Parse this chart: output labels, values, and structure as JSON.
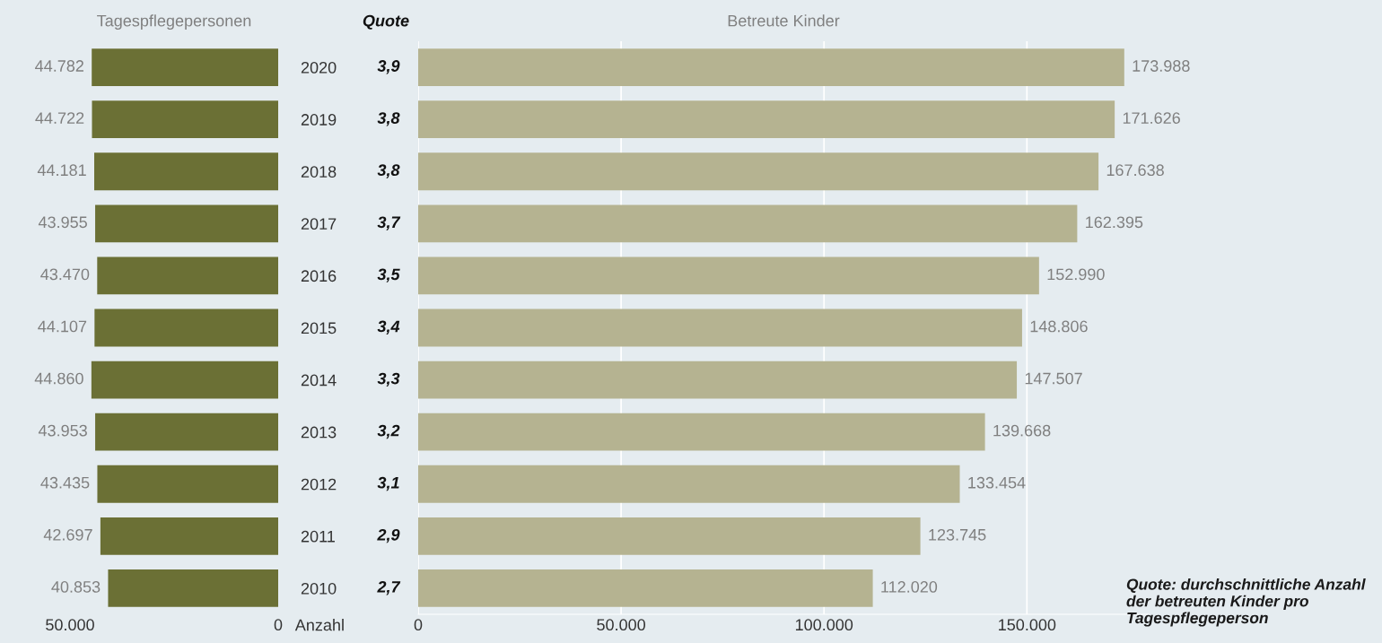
{
  "chart_data": [
    {
      "type": "bar",
      "orientation": "horizontal",
      "title": "Tagespflegepersonen",
      "xlabel": "Anzahl",
      "categories": [
        "2020",
        "2019",
        "2018",
        "2017",
        "2016",
        "2015",
        "2014",
        "2013",
        "2012",
        "2011",
        "2010"
      ],
      "values": [
        44782,
        44722,
        44181,
        43955,
        43470,
        44107,
        44860,
        43953,
        43435,
        42697,
        40853
      ],
      "value_labels": [
        "44.782",
        "44.722",
        "44.181",
        "43.955",
        "43.470",
        "44.107",
        "44.860",
        "43.953",
        "43.435",
        "42.697",
        "40.853"
      ],
      "color": "#6b7035",
      "xlim": [
        50000,
        0
      ],
      "xticks": [
        {
          "value": 50000,
          "label": "50.000"
        },
        0
      ],
      "grid": false
    },
    {
      "type": "other",
      "title": "Quote",
      "values": [
        3.9,
        3.8,
        3.8,
        3.7,
        3.5,
        3.4,
        3.3,
        3.2,
        3.1,
        2.9,
        2.7
      ],
      "value_labels": [
        "3,9",
        "3,8",
        "3,8",
        "3,7",
        "3,5",
        "3,4",
        "3,3",
        "3,2",
        "3,1",
        "2,9",
        "2,7"
      ]
    },
    {
      "type": "bar",
      "orientation": "horizontal",
      "title": "Betreute Kinder",
      "categories": [
        "2020",
        "2019",
        "2018",
        "2017",
        "2016",
        "2015",
        "2014",
        "2013",
        "2012",
        "2011",
        "2010"
      ],
      "values": [
        173988,
        171626,
        167638,
        162395,
        152990,
        148806,
        147507,
        139668,
        133454,
        123745,
        112020
      ],
      "value_labels": [
        "173.988",
        "171.626",
        "167.638",
        "162.395",
        "152.990",
        "148.806",
        "147.507",
        "139.668",
        "133.454",
        "123.745",
        "112.020"
      ],
      "color": "#b5b391",
      "xlim": [
        0,
        180000
      ],
      "xticks": [
        0,
        {
          "value": 50000,
          "label": "50.000"
        },
        {
          "value": 100000,
          "label": "100.000"
        },
        {
          "value": 150000,
          "label": "150.000"
        }
      ],
      "tick_labels": "x",
      "grid": "x",
      "annotations": [
        "Quote: durchschnittliche Anzahl der betreuten Kinder pro Tagespflegeperson"
      ]
    }
  ]
}
